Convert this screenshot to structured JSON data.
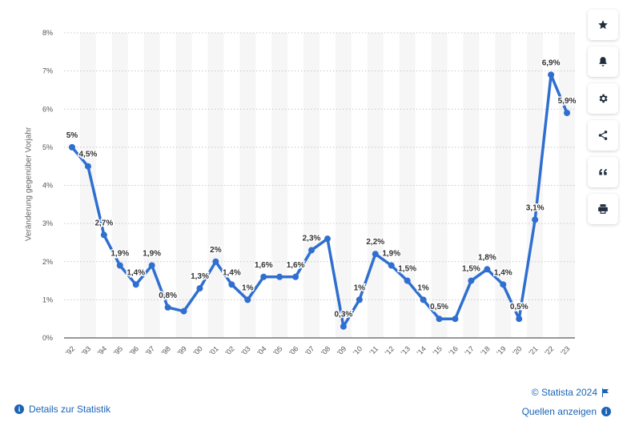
{
  "chart_data": {
    "type": "line",
    "ylabel": "Veränderung gegenüber Vorjahr",
    "ylim": [
      0,
      8
    ],
    "y_ticks": [
      "0%",
      "1%",
      "2%",
      "3%",
      "4%",
      "5%",
      "6%",
      "7%",
      "8%"
    ],
    "categories": [
      "'92",
      "'93",
      "'94",
      "'95",
      "'96",
      "'97",
      "'98",
      "'99",
      "'00",
      "'01",
      "'02",
      "'03",
      "'04",
      "'05",
      "'06",
      "'07",
      "'08",
      "'09",
      "'10",
      "'11",
      "'12",
      "'13",
      "'14",
      "'15",
      "'16",
      "'17",
      "'18",
      "'19",
      "'20",
      "'21",
      "'22",
      "'23"
    ],
    "series": [
      {
        "values": [
          5.0,
          4.5,
          2.7,
          1.9,
          1.4,
          1.9,
          0.8,
          0.7,
          1.3,
          2.0,
          1.4,
          1.0,
          1.6,
          1.6,
          1.6,
          2.3,
          2.6,
          0.3,
          1.0,
          2.2,
          1.9,
          1.5,
          1.0,
          0.5,
          0.5,
          1.5,
          1.8,
          1.4,
          0.5,
          3.1,
          6.9,
          5.9
        ],
        "labels": [
          "5%",
          "4,5%",
          "2,7%",
          "1,9%",
          "1,4%",
          "1,9%",
          "0,8%",
          "",
          "1,3%",
          "2%",
          "1,4%",
          "1%",
          "1,6%",
          "",
          "1,6%",
          "2,3%",
          "",
          "0,3%",
          "1%",
          "2,2%",
          "1,9%",
          "1,5%",
          "1%",
          "0,5%",
          "",
          "1,5%",
          "1,8%",
          "1,4%",
          "0,5%",
          "3,1%",
          "6,9%",
          "5,9%"
        ],
        "color": "#2f6fd0"
      }
    ],
    "grid": true
  },
  "toolbar": {
    "items": [
      {
        "name": "star-icon"
      },
      {
        "name": "bell-icon"
      },
      {
        "name": "gear-icon"
      },
      {
        "name": "share-icon"
      },
      {
        "name": "quote-icon"
      },
      {
        "name": "print-icon"
      }
    ]
  },
  "footer": {
    "copyright": "© Statista 2024",
    "sources": "Quellen anzeigen",
    "details": "Details zur Statistik",
    "info_glyph": "i"
  }
}
